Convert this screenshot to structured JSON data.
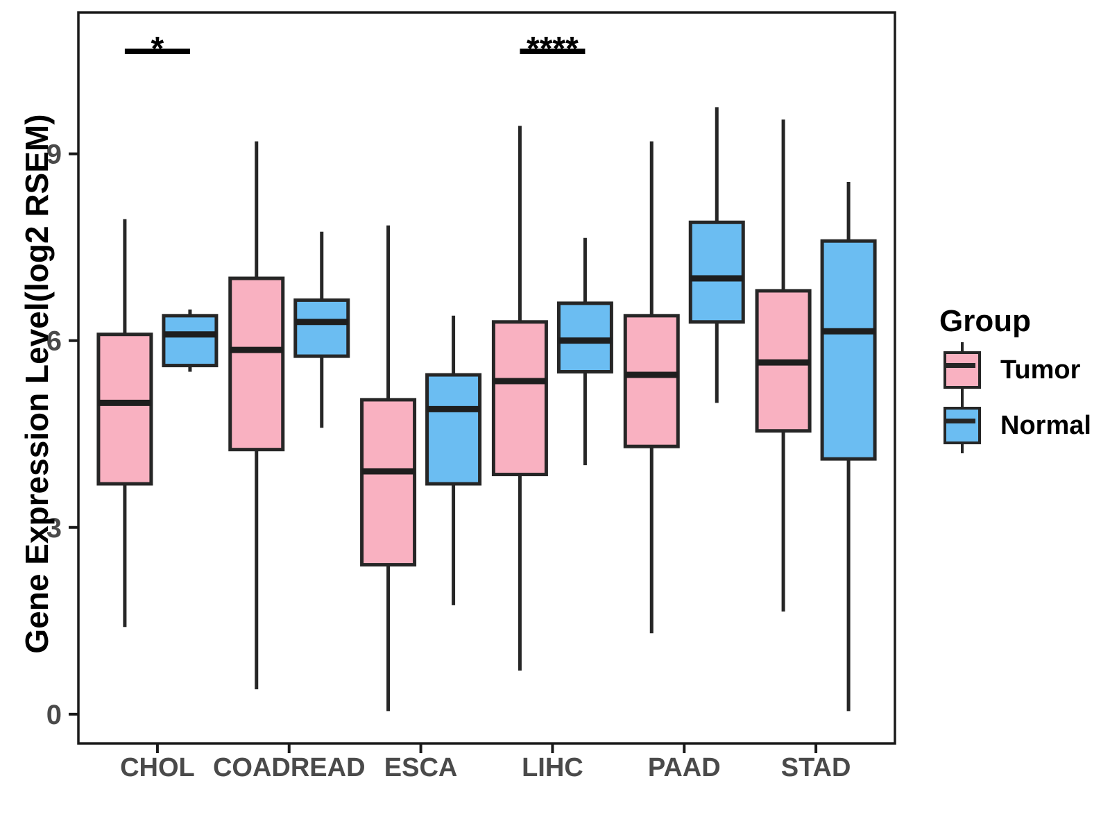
{
  "y_axis": {
    "label": "Gene Expression Level(log2 RSEM)",
    "ticks": [
      0,
      3,
      6,
      9
    ],
    "min": -0.47,
    "max": 11.27
  },
  "x_axis": {
    "categories": [
      "CHOL",
      "COADREAD",
      "ESCA",
      "LIHC",
      "PAAD",
      "STAD"
    ]
  },
  "legend": {
    "title": "Group",
    "entries": [
      {
        "label": "Tumor",
        "color": "#F9B1C1"
      },
      {
        "label": "Normal",
        "color": "#6BBDF2"
      }
    ]
  },
  "colors": {
    "tumor_fill": "#F9B1C1",
    "normal_fill": "#6BBDF2",
    "stroke": "#262626",
    "axis_text": "#4a4a4a",
    "axis_line": "#1a1a1a"
  },
  "chart_data": {
    "type": "boxplot",
    "title": "",
    "xlabel": "",
    "ylabel": "Gene Expression Level(log2 RSEM)",
    "ylim": [
      -0.47,
      11.27
    ],
    "grid": false,
    "legend_position": "right",
    "categories": [
      "CHOL",
      "COADREAD",
      "ESCA",
      "LIHC",
      "PAAD",
      "STAD"
    ],
    "series": [
      {
        "name": "Tumor",
        "color": "#F9B1C1",
        "boxes": [
          {
            "category": "CHOL",
            "whisker_low": 1.4,
            "q1": 3.7,
            "median": 5.0,
            "q3": 6.1,
            "whisker_high": 7.95
          },
          {
            "category": "COADREAD",
            "whisker_low": 0.4,
            "q1": 4.25,
            "median": 5.85,
            "q3": 7.0,
            "whisker_high": 9.2
          },
          {
            "category": "ESCA",
            "whisker_low": 0.05,
            "q1": 2.4,
            "median": 3.9,
            "q3": 5.05,
            "whisker_high": 7.85
          },
          {
            "category": "LIHC",
            "whisker_low": 0.7,
            "q1": 3.85,
            "median": 5.35,
            "q3": 6.3,
            "whisker_high": 9.45
          },
          {
            "category": "PAAD",
            "whisker_low": 1.3,
            "q1": 4.3,
            "median": 5.45,
            "q3": 6.4,
            "whisker_high": 9.2
          },
          {
            "category": "STAD",
            "whisker_low": 1.65,
            "q1": 4.55,
            "median": 5.65,
            "q3": 6.8,
            "whisker_high": 9.55
          }
        ]
      },
      {
        "name": "Normal",
        "color": "#6BBDF2",
        "boxes": [
          {
            "category": "CHOL",
            "whisker_low": 5.5,
            "q1": 5.6,
            "median": 6.1,
            "q3": 6.4,
            "whisker_high": 6.5
          },
          {
            "category": "COADREAD",
            "whisker_low": 4.6,
            "q1": 5.75,
            "median": 6.3,
            "q3": 6.65,
            "whisker_high": 7.75
          },
          {
            "category": "ESCA",
            "whisker_low": 1.75,
            "q1": 3.7,
            "median": 4.9,
            "q3": 5.45,
            "whisker_high": 6.4
          },
          {
            "category": "LIHC",
            "whisker_low": 4.0,
            "q1": 5.5,
            "median": 6.0,
            "q3": 6.6,
            "whisker_high": 7.65
          },
          {
            "category": "PAAD",
            "whisker_low": 5.0,
            "q1": 6.3,
            "median": 7.0,
            "q3": 7.9,
            "whisker_high": 9.75
          },
          {
            "category": "STAD",
            "whisker_low": 0.05,
            "q1": 4.1,
            "median": 6.15,
            "q3": 7.6,
            "whisker_high": 8.55
          }
        ]
      }
    ],
    "significance": [
      {
        "category": "CHOL",
        "label": "*"
      },
      {
        "category": "LIHC",
        "label": "****"
      }
    ]
  }
}
